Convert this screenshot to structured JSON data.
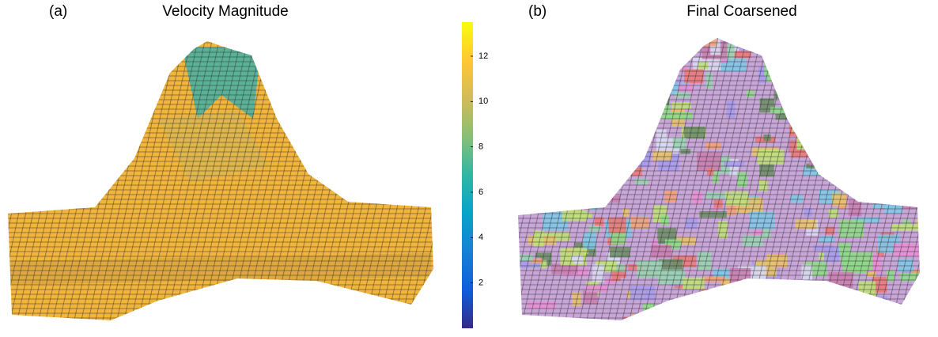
{
  "panels": [
    {
      "label": "(a)",
      "title": "Velocity Magnitude"
    },
    {
      "label": "(b)",
      "title": "Final Coarsened"
    }
  ],
  "colorbar": {
    "lim": [
      0,
      13.5
    ],
    "ticks": [
      2,
      4,
      6,
      8,
      10,
      12
    ],
    "colors": [
      "#352a87",
      "#0f5cdd",
      "#1481d6",
      "#06a4ca",
      "#2eb7a4",
      "#87bf77",
      "#d1bb59",
      "#fec832",
      "#f9fb0e"
    ]
  }
}
